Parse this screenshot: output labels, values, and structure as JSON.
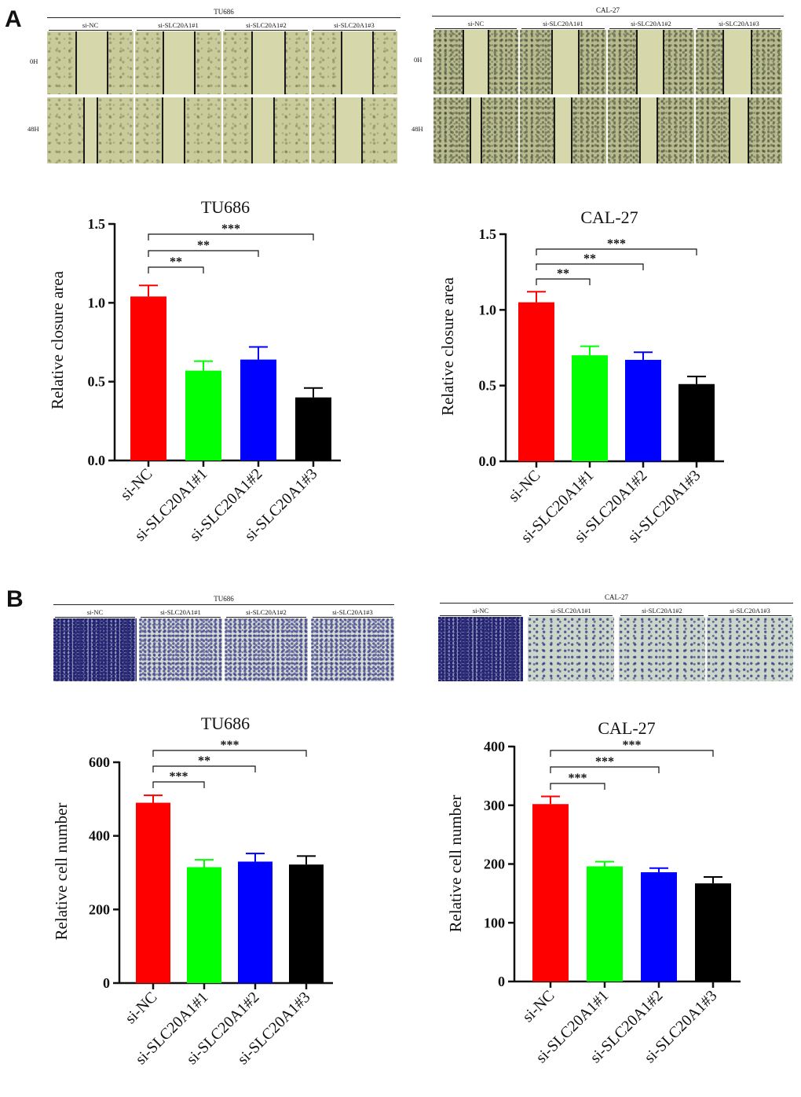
{
  "panels": {
    "a": {
      "letter": "A"
    },
    "b": {
      "letter": "B"
    }
  },
  "wound_assay": {
    "tu686": {
      "title": "TU686",
      "columns": [
        "si-NC",
        "si-SLC20A1#1",
        "si-SLC20A1#2",
        "si-SLC20A1#3"
      ],
      "rows": [
        "0H",
        "48H"
      ]
    },
    "cal27": {
      "title": "CAL-27",
      "columns": [
        "si-NC",
        "si-SLC20A1#1",
        "si-SLC20A1#2",
        "si-SLC20A1#3"
      ],
      "rows": [
        "0H",
        "48H"
      ]
    }
  },
  "transwell_assay": {
    "tu686": {
      "title": "TU686",
      "columns": [
        "si-NC",
        "si-SLC20A1#1",
        "si-SLC20A1#2",
        "si-SLC20A1#3"
      ]
    },
    "cal27": {
      "title": "CAL-27",
      "columns": [
        "si-NC",
        "si-SLC20A1#1",
        "si-SLC20A1#2",
        "si-SLC20A1#3"
      ]
    }
  },
  "chart_data": [
    {
      "id": "a_tu686",
      "type": "bar",
      "title": "TU686",
      "ylabel": "Relative closure area",
      "categories": [
        "si-NC",
        "si-SLC20A1#1",
        "si-SLC20A1#2",
        "si-SLC20A1#3"
      ],
      "values": [
        1.04,
        0.57,
        0.64,
        0.4
      ],
      "errors": [
        0.07,
        0.06,
        0.08,
        0.06
      ],
      "colors": [
        "#ff0000",
        "#00ff00",
        "#0000ff",
        "#000000"
      ],
      "ylim": [
        0,
        1.5
      ],
      "yticks": [
        "0.0",
        "0.5",
        "1.0",
        "1.5"
      ],
      "yticks_values": [
        0,
        0.5,
        1.0,
        1.5
      ],
      "significance": [
        {
          "from": 0,
          "to": 1,
          "label": "**"
        },
        {
          "from": 0,
          "to": 2,
          "label": "**"
        },
        {
          "from": 0,
          "to": 3,
          "label": "***"
        }
      ]
    },
    {
      "id": "a_cal27",
      "type": "bar",
      "title": "CAL-27",
      "ylabel": "Relative closure area",
      "categories": [
        "si-NC",
        "si-SLC20A1#1",
        "si-SLC20A1#2",
        "si-SLC20A1#3"
      ],
      "values": [
        1.05,
        0.7,
        0.67,
        0.51
      ],
      "errors": [
        0.07,
        0.06,
        0.05,
        0.05
      ],
      "colors": [
        "#ff0000",
        "#00ff00",
        "#0000ff",
        "#000000"
      ],
      "ylim": [
        0,
        1.5
      ],
      "yticks": [
        "0.0",
        "0.5",
        "1.0",
        "1.5"
      ],
      "yticks_values": [
        0,
        0.5,
        1.0,
        1.5
      ],
      "significance": [
        {
          "from": 0,
          "to": 1,
          "label": "**"
        },
        {
          "from": 0,
          "to": 2,
          "label": "**"
        },
        {
          "from": 0,
          "to": 3,
          "label": "***"
        }
      ]
    },
    {
      "id": "b_tu686",
      "type": "bar",
      "title": "TU686",
      "ylabel": "Relative cell number",
      "categories": [
        "si-NC",
        "si-SLC20A1#1",
        "si-SLC20A1#2",
        "si-SLC20A1#3"
      ],
      "values": [
        490,
        315,
        330,
        322
      ],
      "errors": [
        20,
        20,
        22,
        23
      ],
      "colors": [
        "#ff0000",
        "#00ff00",
        "#0000ff",
        "#000000"
      ],
      "ylim": [
        0,
        600
      ],
      "yticks": [
        "0",
        "200",
        "400",
        "600"
      ],
      "yticks_values": [
        0,
        200,
        400,
        600
      ],
      "significance": [
        {
          "from": 0,
          "to": 1,
          "label": "***"
        },
        {
          "from": 0,
          "to": 2,
          "label": "**"
        },
        {
          "from": 0,
          "to": 3,
          "label": "***"
        }
      ]
    },
    {
      "id": "b_cal27",
      "type": "bar",
      "title": "CAL-27",
      "ylabel": "Relative cell number",
      "categories": [
        "si-NC",
        "si-SLC20A1#1",
        "si-SLC20A1#2",
        "si-SLC20A1#3"
      ],
      "values": [
        302,
        196,
        186,
        167
      ],
      "errors": [
        13,
        8,
        7,
        11
      ],
      "colors": [
        "#ff0000",
        "#00ff00",
        "#0000ff",
        "#000000"
      ],
      "ylim": [
        0,
        400
      ],
      "yticks": [
        "0",
        "100",
        "200",
        "300",
        "400"
      ],
      "yticks_values": [
        0,
        100,
        200,
        300,
        400
      ],
      "significance": [
        {
          "from": 0,
          "to": 1,
          "label": "***"
        },
        {
          "from": 0,
          "to": 2,
          "label": "***"
        },
        {
          "from": 0,
          "to": 3,
          "label": "***"
        }
      ]
    }
  ]
}
